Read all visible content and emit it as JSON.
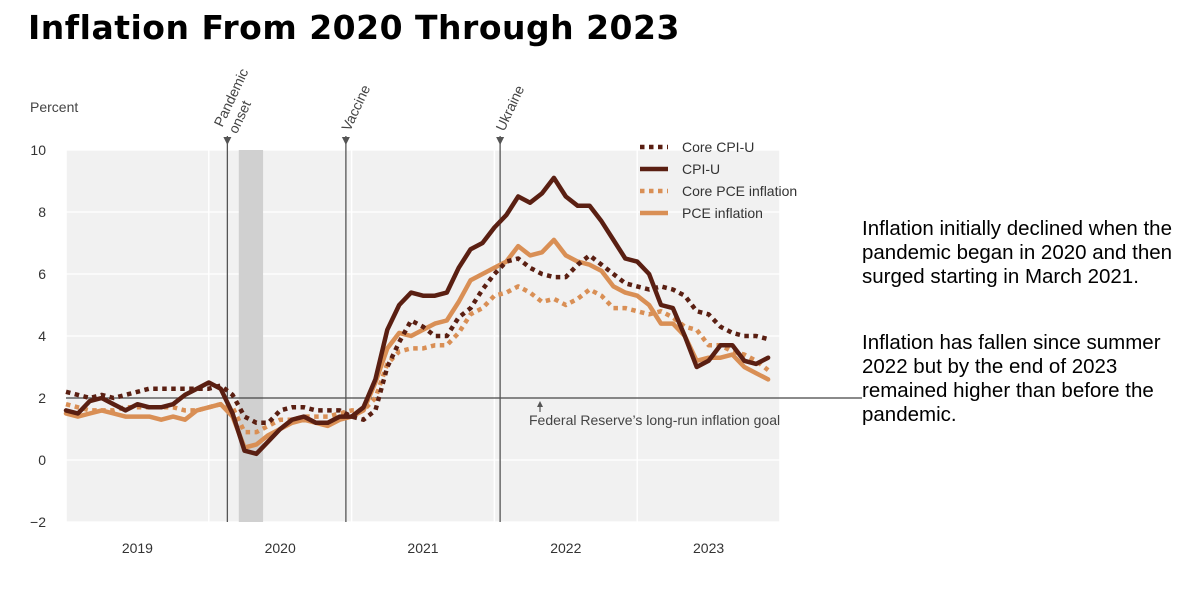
{
  "title": "Inflation From 2020 Through 2023",
  "side_text": [
    "Inflation initially declined when the pandemic began in 2020 and then surged starting in March 2021.",
    "Inflation has fallen since summer 2022 but by the end of 2023 remained higher than before the pandemic."
  ],
  "colors": {
    "dark": "#5a1f12",
    "light": "#d98f55",
    "recession": "#d0d0d0",
    "axis": "#444444"
  },
  "chart_data": {
    "type": "line",
    "title": "Inflation From 2020 Through 2023",
    "ylabel": "Percent",
    "xlabel": "",
    "ylim": [
      -2,
      10
    ],
    "yticks": [
      -2,
      0,
      2,
      4,
      6,
      8,
      10
    ],
    "ytick_labels": [
      "−2",
      "0",
      "2",
      "4",
      "6",
      "8",
      "10"
    ],
    "x_start": 2019.0,
    "x_end": 2024.0,
    "year_labels": [
      "2019",
      "2020",
      "2021",
      "2022",
      "2023"
    ],
    "month_step": 0.08333,
    "goal": {
      "value": 2,
      "label": "Federal Reserve’s long-run inflation goal"
    },
    "events": [
      {
        "name": "Pandemic onset",
        "lines": [
          "Pandemic",
          "onset"
        ],
        "x": 2020.13
      },
      {
        "name": "Vaccine",
        "lines": [
          "Vaccine"
        ],
        "x": 2020.96
      },
      {
        "name": "Ukraine",
        "lines": [
          "Ukraine"
        ],
        "x": 2022.04
      }
    ],
    "recession": [
      2020.21,
      2020.38
    ],
    "legend": [
      "Core CPI-U",
      "CPI-U",
      "Core PCE inflation",
      "PCE inflation"
    ],
    "series": [
      {
        "name": "Core CPI-U",
        "style": "dotted",
        "color": "dark",
        "start": 2019.0,
        "values": [
          2.2,
          2.1,
          2.0,
          2.1,
          2.0,
          2.1,
          2.2,
          2.3,
          2.3,
          2.3,
          2.3,
          2.3,
          2.3,
          2.4,
          2.1,
          1.4,
          1.2,
          1.2,
          1.6,
          1.7,
          1.7,
          1.6,
          1.6,
          1.6,
          1.4,
          1.3,
          1.6,
          3.0,
          3.8,
          4.5,
          4.3,
          4.0,
          4.0,
          4.6,
          4.9,
          5.5,
          6.0,
          6.4,
          6.5,
          6.2,
          6.0,
          5.9,
          5.9,
          6.3,
          6.6,
          6.3,
          6.0,
          5.7,
          5.6,
          5.5,
          5.6,
          5.5,
          5.3,
          4.8,
          4.7,
          4.3,
          4.1,
          4.0,
          4.0,
          3.9
        ]
      },
      {
        "name": "CPI-U",
        "style": "solid",
        "color": "dark",
        "start": 2019.0,
        "values": [
          1.6,
          1.5,
          1.9,
          2.0,
          1.8,
          1.6,
          1.8,
          1.7,
          1.7,
          1.8,
          2.1,
          2.3,
          2.5,
          2.3,
          1.5,
          0.3,
          0.2,
          0.6,
          1.0,
          1.3,
          1.4,
          1.2,
          1.2,
          1.4,
          1.4,
          1.7,
          2.6,
          4.2,
          5.0,
          5.4,
          5.3,
          5.3,
          5.4,
          6.2,
          6.8,
          7.0,
          7.5,
          7.9,
          8.5,
          8.3,
          8.6,
          9.1,
          8.5,
          8.2,
          8.2,
          7.7,
          7.1,
          6.5,
          6.4,
          6.0,
          5.0,
          4.9,
          4.0,
          3.0,
          3.2,
          3.7,
          3.7,
          3.2,
          3.1,
          3.3
        ]
      },
      {
        "name": "Core PCE inflation",
        "style": "dotted",
        "color": "light",
        "start": 2019.0,
        "values": [
          1.8,
          1.7,
          1.6,
          1.6,
          1.6,
          1.7,
          1.7,
          1.7,
          1.7,
          1.7,
          1.6,
          1.6,
          1.7,
          1.8,
          1.7,
          0.9,
          0.9,
          1.1,
          1.3,
          1.3,
          1.4,
          1.4,
          1.4,
          1.5,
          1.6,
          1.6,
          2.0,
          3.1,
          3.5,
          3.6,
          3.6,
          3.7,
          3.7,
          4.1,
          4.7,
          4.9,
          5.3,
          5.4,
          5.6,
          5.4,
          5.1,
          5.2,
          5.0,
          5.2,
          5.5,
          5.3,
          4.9,
          4.9,
          4.8,
          4.7,
          4.8,
          4.6,
          4.3,
          4.2,
          3.7,
          3.7,
          3.5,
          3.4,
          3.2,
          2.9
        ]
      },
      {
        "name": "PCE inflation",
        "style": "solid",
        "color": "light",
        "start": 2019.0,
        "values": [
          1.5,
          1.4,
          1.5,
          1.6,
          1.5,
          1.4,
          1.4,
          1.4,
          1.3,
          1.4,
          1.3,
          1.6,
          1.7,
          1.8,
          1.4,
          0.4,
          0.5,
          0.8,
          1.0,
          1.2,
          1.3,
          1.2,
          1.1,
          1.3,
          1.4,
          1.6,
          2.5,
          3.6,
          4.1,
          4.0,
          4.2,
          4.4,
          4.5,
          5.1,
          5.8,
          6.0,
          6.2,
          6.4,
          6.9,
          6.6,
          6.7,
          7.1,
          6.6,
          6.4,
          6.3,
          6.1,
          5.6,
          5.4,
          5.3,
          5.0,
          4.4,
          4.4,
          4.0,
          3.2,
          3.3,
          3.3,
          3.4,
          3.0,
          2.8,
          2.6
        ]
      }
    ]
  }
}
